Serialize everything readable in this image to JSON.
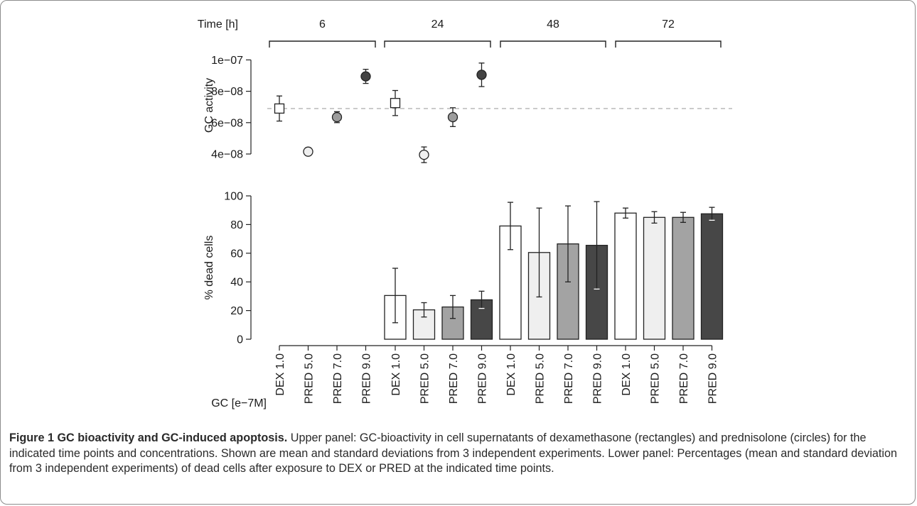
{
  "chart_data": [
    {
      "type": "scatter",
      "panel": "upper",
      "header_label": "Time [h]",
      "time_groups": [
        "6",
        "24",
        "48",
        "72"
      ],
      "ylabel": "GC activity",
      "yticks": [
        4e-08,
        6e-08,
        8e-08,
        1e-07
      ],
      "ytick_labels": [
        "4e−08",
        "6e−08",
        "8e−08",
        "1e−07"
      ],
      "ylim": [
        4e-08,
        1.02e-07
      ],
      "reference_line": 6.9e-08,
      "points": [
        {
          "time": "6",
          "drug": "DEX",
          "conc": "1.0",
          "shape": "square",
          "fill": "#ffffff",
          "mean": 6.9e-08,
          "sd": 8e-09
        },
        {
          "time": "6",
          "drug": "PRED",
          "conc": "5.0",
          "shape": "circle",
          "fill": "#efefef",
          "mean": 4.15e-08,
          "sd": 2.5e-09
        },
        {
          "time": "6",
          "drug": "PRED",
          "conc": "7.0",
          "shape": "circle",
          "fill": "#9c9c9c",
          "mean": 6.35e-08,
          "sd": 3.5e-09
        },
        {
          "time": "6",
          "drug": "PRED",
          "conc": "9.0",
          "shape": "circle",
          "fill": "#434343",
          "mean": 8.95e-08,
          "sd": 4.5e-09
        },
        {
          "time": "24",
          "drug": "DEX",
          "conc": "1.0",
          "shape": "square",
          "fill": "#ffffff",
          "mean": 7.25e-08,
          "sd": 8e-09
        },
        {
          "time": "24",
          "drug": "PRED",
          "conc": "5.0",
          "shape": "circle",
          "fill": "#efefef",
          "mean": 3.95e-08,
          "sd": 5e-09
        },
        {
          "time": "24",
          "drug": "PRED",
          "conc": "7.0",
          "shape": "circle",
          "fill": "#9c9c9c",
          "mean": 6.35e-08,
          "sd": 6e-09
        },
        {
          "time": "24",
          "drug": "PRED",
          "conc": "9.0",
          "shape": "circle",
          "fill": "#434343",
          "mean": 9.05e-08,
          "sd": 7.5e-09
        }
      ]
    },
    {
      "type": "bar",
      "panel": "lower",
      "ylabel": "% dead cells",
      "yticks": [
        0,
        20,
        40,
        60,
        80,
        100
      ],
      "ylim": [
        0,
        100
      ],
      "xlabel": "GC [e−7M]",
      "categories": [
        "DEX 1.0",
        "PRED 5.0",
        "PRED 7.0",
        "PRED 9.0",
        "DEX 1.0",
        "PRED 5.0",
        "PRED 7.0",
        "PRED 9.0",
        "DEX 1.0",
        "PRED 5.0",
        "PRED 7.0",
        "PRED 9.0",
        "DEX 1.0",
        "PRED 5.0",
        "PRED 7.0",
        "PRED 9.0"
      ],
      "time_group_of_category": [
        "6",
        "6",
        "6",
        "6",
        "24",
        "24",
        "24",
        "24",
        "48",
        "48",
        "48",
        "48",
        "72",
        "72",
        "72",
        "72"
      ],
      "bar_colors": [
        "#ffffff",
        "#efefef",
        "#a3a3a3",
        "#474747"
      ],
      "values": [
        null,
        null,
        null,
        null,
        30.5,
        20.5,
        22.5,
        27.5,
        79,
        60.5,
        66.5,
        65.5,
        88,
        85,
        85,
        87.5
      ],
      "errors": [
        null,
        null,
        null,
        null,
        19,
        5,
        8,
        6,
        16.5,
        31,
        26.5,
        30.5,
        3.5,
        4,
        3.5,
        4.5
      ]
    }
  ],
  "caption": {
    "title": "Figure 1 GC bioactivity and GC-induced apoptosis.",
    "text": " Upper panel: GC-bioactivity in cell supernatants of dexamethasone (rectangles) and prednisolone (circles) for the indicated time points and concentrations. Shown are mean and standard deviations from 3 independent experiments. Lower panel: Percentages (mean and standard deviation from 3 independent experiments) of dead cells after exposure to DEX or PRED at the indicated time points."
  }
}
